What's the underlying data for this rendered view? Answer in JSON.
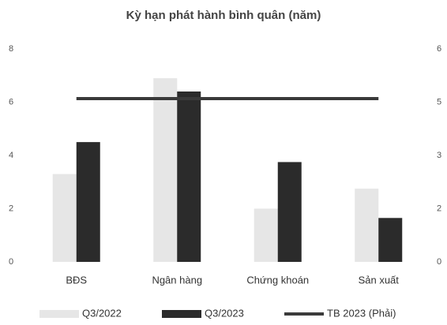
{
  "chart_data": {
    "type": "bar",
    "title": "Kỳ hạn phát hành bình quân (năm)",
    "categories": [
      "BĐS",
      "Ngân hàng",
      "Chứng khoán",
      "Sản xuất"
    ],
    "series": [
      {
        "name": "Q3/2022",
        "color": "#e6e6e6",
        "values": [
          3.3,
          6.9,
          2.0,
          2.75
        ]
      },
      {
        "name": "Q3/2023",
        "color": "#2b2b2b",
        "values": [
          4.5,
          6.4,
          3.75,
          1.65
        ]
      },
      {
        "name": "TB 2023 (Phải)",
        "color": "#3a3a3a",
        "type": "line",
        "axis": "y2",
        "values": [
          4.6,
          4.6,
          4.6,
          4.6
        ]
      }
    ],
    "ylim": [
      0,
      8
    ],
    "yticks": [
      0,
      2,
      4,
      6,
      8
    ],
    "y2lim": [
      0,
      6
    ],
    "y2ticks": [
      0,
      {
        "value": 1.5,
        "label": "2"
      },
      3,
      {
        "value": 4.5,
        "label": "5"
      },
      6
    ],
    "grid": false,
    "legend": "bottom"
  }
}
